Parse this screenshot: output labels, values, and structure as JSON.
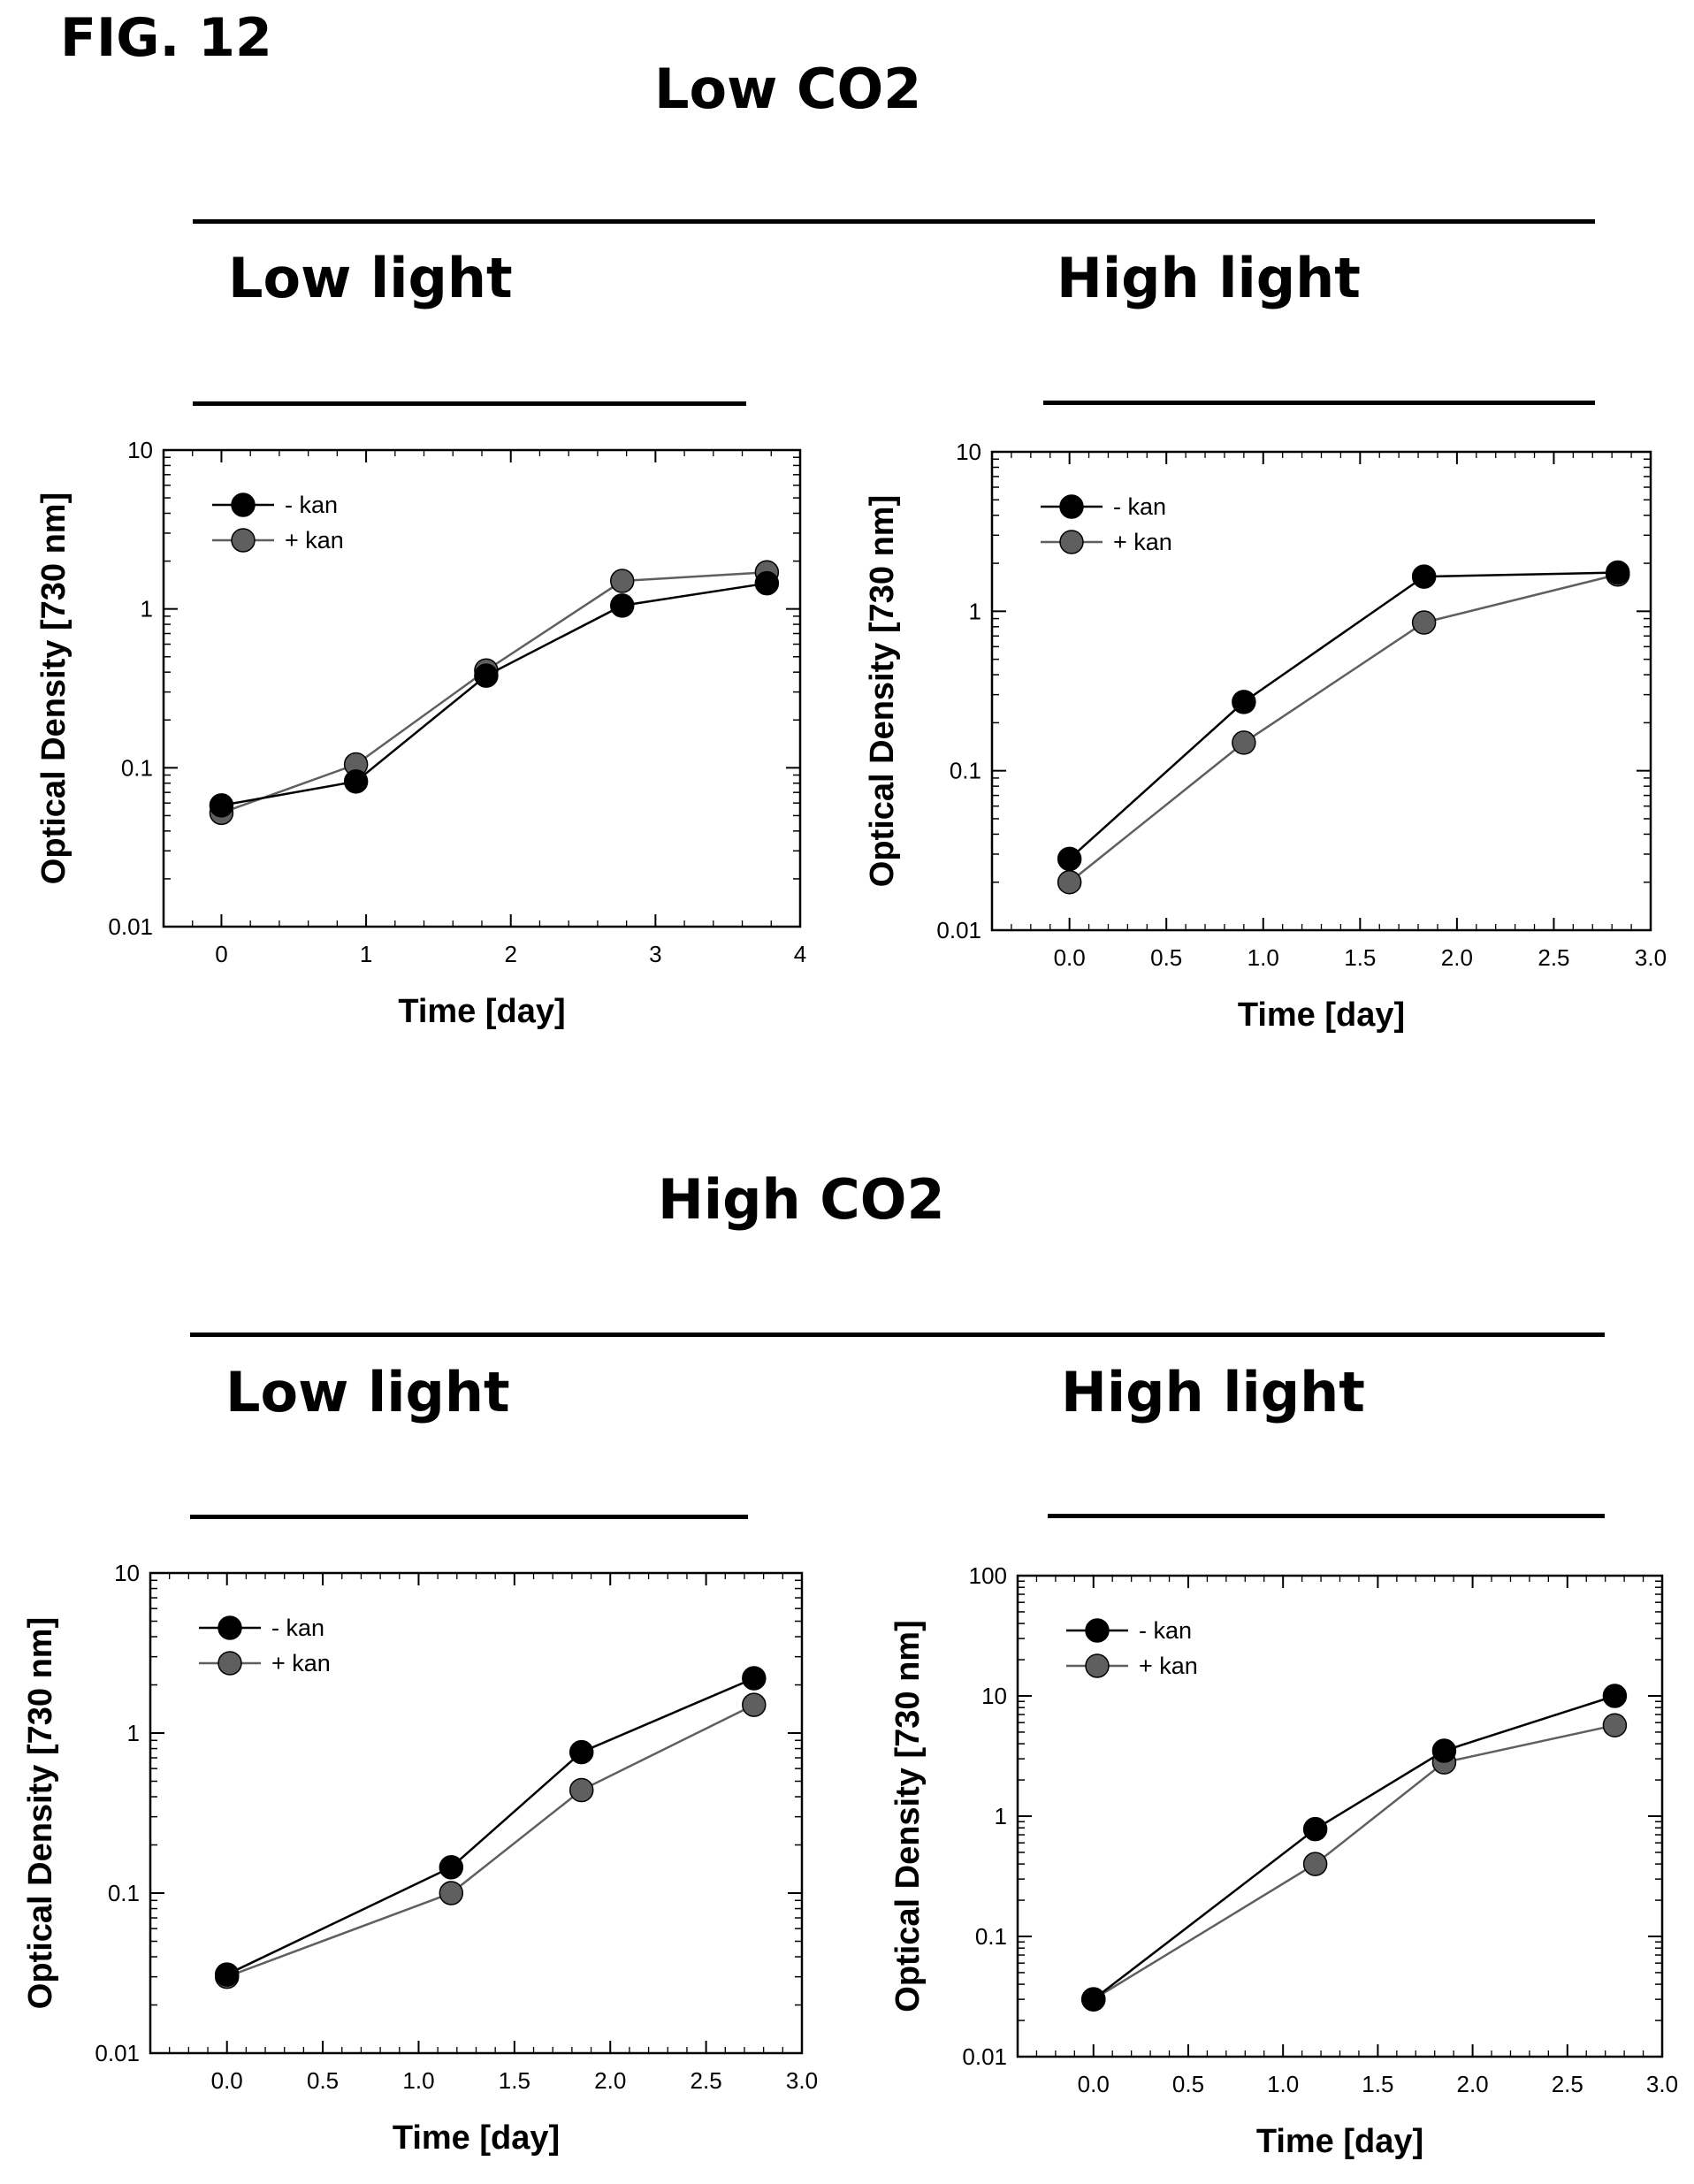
{
  "figure_label": "FIG. 12",
  "sections": {
    "low_co2": {
      "title": "Low CO2"
    },
    "high_co2": {
      "title": "High CO2"
    }
  },
  "panels": {
    "p1": {
      "title": "Low light"
    },
    "p2": {
      "title": "High light"
    },
    "p3": {
      "title": "Low light"
    },
    "p4": {
      "title": "High light"
    }
  },
  "colors": {
    "minus_kan": "#000000",
    "plus_kan": "#5f5f5f"
  },
  "chart_data": [
    {
      "type": "line",
      "scale_y": "log",
      "xlabel": "Time [day]",
      "ylabel": "Optical Density [730 nm]",
      "xlim": [
        -0.4,
        4.0
      ],
      "ylim": [
        0.01,
        10
      ],
      "xticks": [
        "0",
        "1",
        "2",
        "3",
        "4"
      ],
      "yticks": [
        "0.01",
        "0.1",
        "1",
        "10"
      ],
      "legend_position": "top-left",
      "series": [
        {
          "name": "- kan",
          "x": [
            0,
            0.93,
            1.83,
            2.77,
            3.77
          ],
          "y": [
            0.058,
            0.082,
            0.38,
            1.05,
            1.45
          ]
        },
        {
          "name": "+ kan",
          "x": [
            0,
            0.93,
            1.83,
            2.77,
            3.77
          ],
          "y": [
            0.052,
            0.105,
            0.41,
            1.5,
            1.7
          ]
        }
      ]
    },
    {
      "type": "line",
      "scale_y": "log",
      "xlabel": "Time [day]",
      "ylabel": "Optical Density [730 nm]",
      "xlim": [
        -0.4,
        3.0
      ],
      "ylim": [
        0.01,
        10
      ],
      "xticks": [
        "0.0",
        "0.5",
        "1.0",
        "1.5",
        "2.0",
        "2.5",
        "3.0"
      ],
      "yticks": [
        "0.01",
        "0.1",
        "1",
        "10"
      ],
      "legend_position": "top-left",
      "series": [
        {
          "name": "- kan",
          "x": [
            0.0,
            0.9,
            1.83,
            2.83
          ],
          "y": [
            0.028,
            0.27,
            1.65,
            1.75
          ]
        },
        {
          "name": "+ kan",
          "x": [
            0.0,
            0.9,
            1.83,
            2.83
          ],
          "y": [
            0.02,
            0.15,
            0.85,
            1.7
          ]
        }
      ]
    },
    {
      "type": "line",
      "scale_y": "log",
      "xlabel": "Time [day]",
      "ylabel": "Optical Density [730 nm]",
      "xlim": [
        -0.4,
        3.0
      ],
      "ylim": [
        0.01,
        10
      ],
      "xticks": [
        "0.0",
        "0.5",
        "1.0",
        "1.5",
        "2.0",
        "2.5",
        "3.0"
      ],
      "yticks": [
        "0.01",
        "0.1",
        "1",
        "10"
      ],
      "legend_position": "top-left",
      "series": [
        {
          "name": "- kan",
          "x": [
            0.0,
            1.17,
            1.85,
            2.75
          ],
          "y": [
            0.031,
            0.145,
            0.76,
            2.2
          ]
        },
        {
          "name": "+ kan",
          "x": [
            0.0,
            1.17,
            1.85,
            2.75
          ],
          "y": [
            0.03,
            0.1,
            0.44,
            1.5
          ]
        }
      ]
    },
    {
      "type": "line",
      "scale_y": "log",
      "xlabel": "Time [day]",
      "ylabel": "Optical Density [730 nm]",
      "xlim": [
        -0.4,
        3.0
      ],
      "ylim": [
        0.01,
        100
      ],
      "xticks": [
        "0.0",
        "0.5",
        "1.0",
        "1.5",
        "2.0",
        "2.5",
        "3.0"
      ],
      "yticks": [
        "0.01",
        "0.1",
        "1",
        "10",
        "100"
      ],
      "legend_position": "top-left",
      "series": [
        {
          "name": "- kan",
          "x": [
            0.0,
            1.17,
            1.85,
            2.75
          ],
          "y": [
            0.03,
            0.78,
            3.5,
            10.0
          ]
        },
        {
          "name": "+ kan",
          "x": [
            0.0,
            1.17,
            1.85,
            2.75
          ],
          "y": [
            0.03,
            0.4,
            2.8,
            5.7
          ]
        }
      ]
    }
  ]
}
